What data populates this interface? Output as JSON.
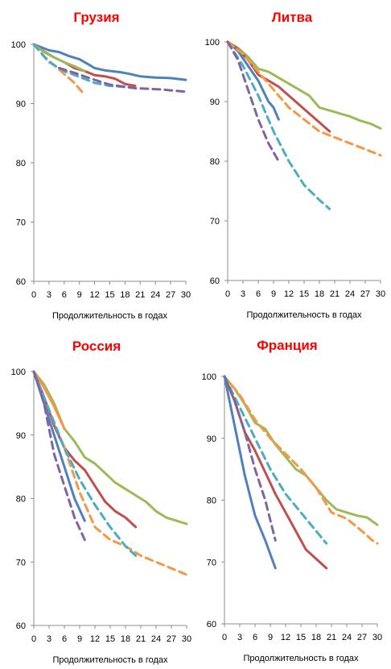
{
  "chart_data": [
    {
      "type": "line",
      "title": "Грузия",
      "xlabel": "Продолжительность в годах",
      "ylabel": "",
      "xlim": [
        0,
        30
      ],
      "ylim": [
        60,
        100
      ],
      "x_ticks": [
        0,
        3,
        6,
        9,
        12,
        15,
        18,
        21,
        24,
        27,
        30
      ],
      "y_ticks": [
        60,
        70,
        80,
        90,
        100
      ],
      "grid": false,
      "series": [
        {
          "color": "#4f81bd",
          "dashed": false,
          "points": [
            [
              0,
              100
            ],
            [
              3,
              99
            ],
            [
              5,
              98.7
            ],
            [
              7,
              98
            ],
            [
              9,
              97.5
            ],
            [
              11,
              96.5
            ],
            [
              12,
              96
            ],
            [
              14,
              95.6
            ],
            [
              17,
              95.3
            ],
            [
              19,
              95
            ],
            [
              21,
              94.6
            ],
            [
              24,
              94.4
            ],
            [
              27,
              94.3
            ],
            [
              30,
              94
            ]
          ]
        },
        {
          "color": "#c0504d",
          "dashed": false,
          "points": [
            [
              0,
              100
            ],
            [
              2,
              98.8
            ],
            [
              4,
              97.8
            ],
            [
              6,
              97
            ],
            [
              8,
              96
            ],
            [
              10,
              95.5
            ],
            [
              12,
              94.8
            ],
            [
              14,
              94.6
            ],
            [
              16,
              94.2
            ],
            [
              18,
              93.3
            ],
            [
              20,
              93
            ]
          ]
        },
        {
          "color": "#9bbb59",
          "dashed": false,
          "points": [
            [
              0,
              100
            ],
            [
              2,
              98.7
            ],
            [
              4,
              97.8
            ],
            [
              6,
              97
            ],
            [
              8,
              96.3
            ],
            [
              10,
              95.5
            ]
          ]
        },
        {
          "color": "#f79646",
          "dashed": true,
          "points": [
            [
              0,
              100
            ],
            [
              2,
              98
            ],
            [
              4,
              96.5
            ],
            [
              6,
              95
            ],
            [
              8,
              93.5
            ],
            [
              10,
              91.5
            ]
          ]
        },
        {
          "color": "#4bacc6",
          "dashed": true,
          "points": [
            [
              0,
              100
            ],
            [
              3,
              97
            ],
            [
              6,
              95.5
            ],
            [
              9,
              94.5
            ],
            [
              12,
              93.5
            ],
            [
              15,
              93
            ],
            [
              18,
              92.8
            ],
            [
              20,
              92.6
            ]
          ]
        },
        {
          "color": "#8064a2",
          "dashed": true,
          "points": [
            [
              5,
              96
            ],
            [
              8,
              95.2
            ],
            [
              12,
              94
            ],
            [
              15,
              93.2
            ],
            [
              20,
              92.6
            ],
            [
              25,
              92.4
            ],
            [
              30,
              92
            ]
          ]
        }
      ]
    },
    {
      "type": "line",
      "title": "Литва",
      "xlabel": "Продолжительность в годах",
      "ylabel": "",
      "xlim": [
        0,
        30
      ],
      "ylim": [
        60,
        100
      ],
      "x_ticks": [
        0,
        3,
        6,
        9,
        12,
        15,
        18,
        21,
        24,
        27,
        30
      ],
      "y_ticks": [
        60,
        70,
        80,
        90,
        100
      ],
      "grid": false,
      "series": [
        {
          "color": "#9bbb59",
          "dashed": false,
          "points": [
            [
              0,
              100
            ],
            [
              2,
              99
            ],
            [
              4,
              97.5
            ],
            [
              6,
              95.5
            ],
            [
              8,
              95
            ],
            [
              10,
              94
            ],
            [
              12,
              93
            ],
            [
              14,
              92
            ],
            [
              16,
              91
            ],
            [
              18,
              89
            ],
            [
              20,
              88.5
            ],
            [
              22,
              88
            ],
            [
              24,
              87.5
            ],
            [
              26,
              86.8
            ],
            [
              28,
              86.3
            ],
            [
              30,
              85.5
            ]
          ]
        },
        {
          "color": "#c0504d",
          "dashed": false,
          "points": [
            [
              0,
              100
            ],
            [
              2,
              98.8
            ],
            [
              4,
              97
            ],
            [
              6,
              94.5
            ],
            [
              8,
              93.5
            ],
            [
              10,
              92.5
            ],
            [
              12,
              91
            ],
            [
              14,
              89.5
            ],
            [
              16,
              88
            ],
            [
              18,
              86.5
            ],
            [
              20,
              85
            ]
          ]
        },
        {
          "color": "#4f81bd",
          "dashed": false,
          "points": [
            [
              0,
              100
            ],
            [
              2,
              98.5
            ],
            [
              4,
              96
            ],
            [
              6,
              93.5
            ],
            [
              8,
              90
            ],
            [
              9,
              89
            ],
            [
              10,
              87
            ]
          ]
        },
        {
          "color": "#f79646",
          "dashed": true,
          "points": [
            [
              0,
              100
            ],
            [
              3,
              98
            ],
            [
              6,
              95
            ],
            [
              9,
              92
            ],
            [
              12,
              89
            ],
            [
              15,
              87
            ],
            [
              18,
              85
            ],
            [
              21,
              84
            ],
            [
              24,
              83
            ],
            [
              27,
              82
            ],
            [
              30,
              81
            ]
          ]
        },
        {
          "color": "#4bacc6",
          "dashed": true,
          "points": [
            [
              0,
              100
            ],
            [
              3,
              96
            ],
            [
              6,
              91
            ],
            [
              9,
              85
            ],
            [
              12,
              80
            ],
            [
              15,
              76
            ],
            [
              18,
              73.5
            ],
            [
              20,
              72
            ]
          ]
        },
        {
          "color": "#8064a2",
          "dashed": true,
          "points": [
            [
              0,
              100
            ],
            [
              2,
              97
            ],
            [
              4,
              92
            ],
            [
              6,
              87
            ],
            [
              8,
              83
            ],
            [
              10,
              80
            ]
          ]
        }
      ]
    },
    {
      "type": "line",
      "title": "Россия",
      "xlabel": "Продолжительность в годах",
      "ylabel": "",
      "xlim": [
        0,
        30
      ],
      "ylim": [
        60,
        100
      ],
      "x_ticks": [
        0,
        3,
        6,
        9,
        12,
        15,
        18,
        21,
        24,
        27,
        30
      ],
      "y_ticks": [
        60,
        70,
        80,
        90,
        100
      ],
      "grid": false,
      "series": [
        {
          "color": "#9bbb59",
          "dashed": false,
          "points": [
            [
              0,
              100
            ],
            [
              2,
              98
            ],
            [
              4,
              95
            ],
            [
              6,
              91
            ],
            [
              8,
              89
            ],
            [
              10,
              86.5
            ],
            [
              12,
              85.5
            ],
            [
              14,
              84
            ],
            [
              16,
              82.5
            ],
            [
              18,
              81.5
            ],
            [
              20,
              80.5
            ],
            [
              22,
              79.5
            ],
            [
              24,
              78
            ],
            [
              26,
              77
            ],
            [
              28,
              76.5
            ],
            [
              30,
              76
            ]
          ]
        },
        {
          "color": "#f79646",
          "dashed": false,
          "points": [
            [
              0,
              100
            ],
            [
              2,
              97.5
            ],
            [
              4,
              94.5
            ],
            [
              6,
              91
            ]
          ]
        },
        {
          "color": "#c0504d",
          "dashed": false,
          "points": [
            [
              0,
              100
            ],
            [
              2,
              96
            ],
            [
              4,
              91.5
            ],
            [
              6,
              88
            ],
            [
              8,
              86
            ],
            [
              10,
              84.5
            ],
            [
              12,
              82
            ],
            [
              14,
              79.5
            ],
            [
              16,
              78
            ],
            [
              18,
              77
            ],
            [
              20,
              75.5
            ]
          ]
        },
        {
          "color": "#4f81bd",
          "dashed": false,
          "points": [
            [
              0,
              100
            ],
            [
              2,
              95
            ],
            [
              4,
              90
            ],
            [
              6,
              85
            ],
            [
              8,
              80
            ],
            [
              10,
              76.5
            ]
          ]
        },
        {
          "color": "#f79646",
          "dashed": true,
          "points": [
            [
              6,
              88
            ],
            [
              9,
              81
            ],
            [
              12,
              75.5
            ],
            [
              15,
              73.5
            ],
            [
              18,
              72.5
            ],
            [
              21,
              71
            ],
            [
              24,
              70
            ],
            [
              27,
              69
            ],
            [
              30,
              68
            ]
          ]
        },
        {
          "color": "#4bacc6",
          "dashed": true,
          "points": [
            [
              0,
              100
            ],
            [
              3,
              94
            ],
            [
              6,
              88
            ],
            [
              9,
              83
            ],
            [
              12,
              79
            ],
            [
              15,
              75.5
            ],
            [
              18,
              72.5
            ],
            [
              20,
              71
            ]
          ]
        },
        {
          "color": "#8064a2",
          "dashed": true,
          "points": [
            [
              0,
              100
            ],
            [
              2,
              95
            ],
            [
              4,
              87
            ],
            [
              6,
              82
            ],
            [
              8,
              77
            ],
            [
              10,
              73.5
            ]
          ]
        }
      ]
    },
    {
      "type": "line",
      "title": "Франция",
      "xlabel": "Продолжительность в годах",
      "ylabel": "",
      "xlim": [
        0,
        30
      ],
      "ylim": [
        60,
        100
      ],
      "x_ticks": [
        0,
        3,
        6,
        9,
        12,
        15,
        18,
        21,
        24,
        27,
        30
      ],
      "y_ticks": [
        60,
        70,
        80,
        90,
        100
      ],
      "grid": false,
      "series": [
        {
          "color": "#9bbb59",
          "dashed": false,
          "points": [
            [
              0,
              100
            ],
            [
              2,
              98
            ],
            [
              4,
              95.5
            ],
            [
              6,
              92.5
            ],
            [
              8,
              91.5
            ],
            [
              10,
              89
            ],
            [
              12,
              87
            ],
            [
              14,
              85
            ],
            [
              16,
              84
            ],
            [
              18,
              82
            ],
            [
              20,
              80
            ],
            [
              22,
              78.5
            ],
            [
              24,
              78
            ],
            [
              26,
              77.5
            ],
            [
              28,
              77.2
            ],
            [
              30,
              76
            ]
          ]
        },
        {
          "color": "#f79646",
          "dashed": true,
          "points": [
            [
              0,
              100
            ],
            [
              3,
              97
            ],
            [
              6,
              93
            ],
            [
              9,
              90
            ],
            [
              12,
              87.5
            ],
            [
              15,
              85
            ],
            [
              18,
              82
            ],
            [
              21,
              78
            ],
            [
              24,
              77
            ],
            [
              27,
              75
            ],
            [
              29,
              73.5
            ],
            [
              30,
              73
            ]
          ]
        },
        {
          "color": "#4bacc6",
          "dashed": true,
          "points": [
            [
              0,
              100
            ],
            [
              3,
              95
            ],
            [
              6,
              90
            ],
            [
              9,
              85
            ],
            [
              12,
              81
            ],
            [
              15,
              78
            ],
            [
              18,
              75
            ],
            [
              20,
              73
            ]
          ]
        },
        {
          "color": "#c0504d",
          "dashed": false,
          "points": [
            [
              0,
              100
            ],
            [
              2,
              96
            ],
            [
              4,
              91
            ],
            [
              6,
              88
            ],
            [
              8,
              84.5
            ],
            [
              10,
              81
            ],
            [
              12,
              78
            ],
            [
              14,
              75
            ],
            [
              16,
              72
            ],
            [
              18,
              70.5
            ],
            [
              20,
              69
            ]
          ]
        },
        {
          "color": "#8064a2",
          "dashed": true,
          "points": [
            [
              0,
              100
            ],
            [
              2,
              96
            ],
            [
              4,
              91
            ],
            [
              6,
              85
            ],
            [
              8,
              80
            ],
            [
              10,
              73.5
            ]
          ]
        },
        {
          "color": "#4f81bd",
          "dashed": false,
          "points": [
            [
              0,
              100
            ],
            [
              2,
              92
            ],
            [
              4,
              84
            ],
            [
              6,
              77.5
            ],
            [
              8,
              73.5
            ],
            [
              10,
              69
            ]
          ]
        }
      ]
    }
  ]
}
